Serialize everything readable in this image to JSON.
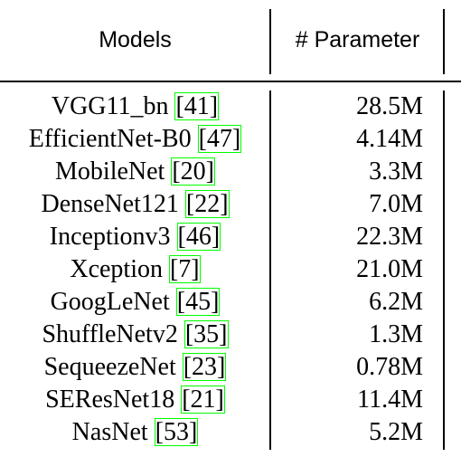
{
  "table": {
    "headers": {
      "models": "Models",
      "parameters": "# Parameter"
    },
    "rows": [
      {
        "model": "VGG11_bn",
        "cite": "[41]",
        "params": "28.5M"
      },
      {
        "model": "EfficientNet-B0",
        "cite": "[47]",
        "params": "4.14M"
      },
      {
        "model": "MobileNet",
        "cite": "[20]",
        "params": "3.3M"
      },
      {
        "model": "DenseNet121",
        "cite": "[22]",
        "params": "7.0M"
      },
      {
        "model": "Inceptionv3",
        "cite": "[46]",
        "params": "22.3M"
      },
      {
        "model": "Xception",
        "cite": "[7]",
        "params": "21.0M"
      },
      {
        "model": "GoogLeNet",
        "cite": "[45]",
        "params": "6.2M"
      },
      {
        "model": "ShuffleNetv2",
        "cite": "[35]",
        "params": "1.3M"
      },
      {
        "model": "SequeezeNet",
        "cite": "[23]",
        "params": "0.78M"
      },
      {
        "model": "SEResNet18",
        "cite": "[21]",
        "params": "11.4M"
      },
      {
        "model": "NasNet",
        "cite": "[53]",
        "params": "5.2M"
      }
    ]
  }
}
